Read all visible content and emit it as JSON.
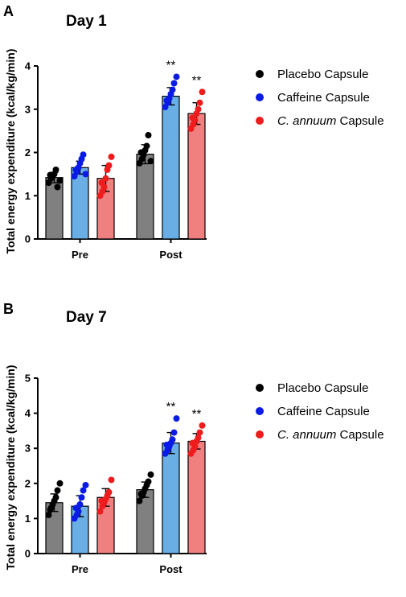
{
  "chart_data": [
    {
      "type": "bar",
      "panel": "A",
      "title": "Day 1",
      "ylabel": "Total energy expenditure (kcal/kg/min)",
      "ylim": [
        0,
        4
      ],
      "yticks": [
        "0",
        "1",
        "2",
        "3",
        "4"
      ],
      "categories": [
        "Pre",
        "Post"
      ],
      "legend_position": "right",
      "series": [
        {
          "name": "Placebo Capsule",
          "name_italic": "",
          "name_rest": "",
          "color": "#808080",
          "dot_color": "#000000",
          "values": [
            1.42,
            1.96
          ],
          "errors": [
            0.12,
            0.22
          ],
          "points": [
            [
              1.3,
              1.4,
              1.45,
              1.5,
              1.6,
              1.2,
              1.35,
              1.48
            ],
            [
              1.75,
              1.85,
              1.95,
              2.05,
              2.15,
              2.4,
              1.8,
              2.0
            ]
          ]
        },
        {
          "name": "",
          "name_italic": "",
          "name_rest": "",
          "label": "Caffeine Capsule",
          "color": "#6aaee6",
          "dot_color": "#0a1be6",
          "values": [
            1.65,
            3.3
          ],
          "errors": [
            0.15,
            0.2
          ],
          "points": [
            [
              1.45,
              1.55,
              1.65,
              1.75,
              1.85,
              1.95,
              1.5,
              1.6
            ],
            [
              3.05,
              3.15,
              3.25,
              3.35,
              3.45,
              3.6,
              3.75,
              3.2
            ]
          ]
        },
        {
          "name": "",
          "name_italic": "C. annuum",
          "name_rest": " Capsule",
          "color": "#f08080",
          "dot_color": "#ee1c1c",
          "values": [
            1.4,
            2.9
          ],
          "errors": [
            0.3,
            0.25
          ],
          "points": [
            [
              1.0,
              1.1,
              1.2,
              1.4,
              1.6,
              1.7,
              1.9,
              1.3
            ],
            [
              2.55,
              2.65,
              2.75,
              2.9,
              3.0,
              3.15,
              3.4,
              2.8
            ]
          ]
        }
      ],
      "significance": [
        {
          "category": "Post",
          "series": 1,
          "label": "**"
        },
        {
          "category": "Post",
          "series": 2,
          "label": "**"
        }
      ]
    },
    {
      "type": "bar",
      "panel": "B",
      "title": "Day 7",
      "ylabel": "Total energy expenditure (kcal/kg/min)",
      "ylim": [
        0,
        5
      ],
      "yticks": [
        "0",
        "1",
        "2",
        "3",
        "4",
        "5"
      ],
      "categories": [
        "Pre",
        "Post"
      ],
      "legend_position": "right",
      "series": [
        {
          "name": "Placebo Capsule",
          "name_italic": "",
          "name_rest": "",
          "color": "#808080",
          "dot_color": "#000000",
          "values": [
            1.45,
            1.82
          ],
          "errors": [
            0.25,
            0.22
          ],
          "points": [
            [
              1.1,
              1.3,
              1.4,
              1.5,
              1.6,
              1.8,
              2.0,
              1.25
            ],
            [
              1.5,
              1.65,
              1.75,
              1.85,
              1.95,
              2.05,
              2.25,
              1.7
            ]
          ]
        },
        {
          "name": "",
          "name_italic": "",
          "name_rest": "",
          "label": "Caffeine Capsule",
          "color": "#6aaee6",
          "dot_color": "#0a1be6",
          "values": [
            1.35,
            3.15
          ],
          "errors": [
            0.3,
            0.3
          ],
          "points": [
            [
              1.0,
              1.1,
              1.2,
              1.4,
              1.6,
              1.8,
              1.95,
              1.3
            ],
            [
              2.85,
              2.95,
              3.05,
              3.15,
              3.25,
              3.45,
              3.85,
              3.1
            ]
          ]
        },
        {
          "name": "",
          "name_italic": "C. annuum",
          "name_rest": " Capsule",
          "color": "#f08080",
          "dot_color": "#ee1c1c",
          "values": [
            1.6,
            3.2
          ],
          "errors": [
            0.25,
            0.22
          ],
          "points": [
            [
              1.2,
              1.35,
              1.45,
              1.55,
              1.65,
              1.75,
              2.1,
              1.5
            ],
            [
              2.85,
              2.95,
              3.05,
              3.2,
              3.3,
              3.45,
              3.65,
              3.15
            ]
          ]
        }
      ],
      "significance": [
        {
          "category": "Post",
          "series": 1,
          "label": "**"
        },
        {
          "category": "Post",
          "series": 2,
          "label": "**"
        }
      ]
    }
  ]
}
